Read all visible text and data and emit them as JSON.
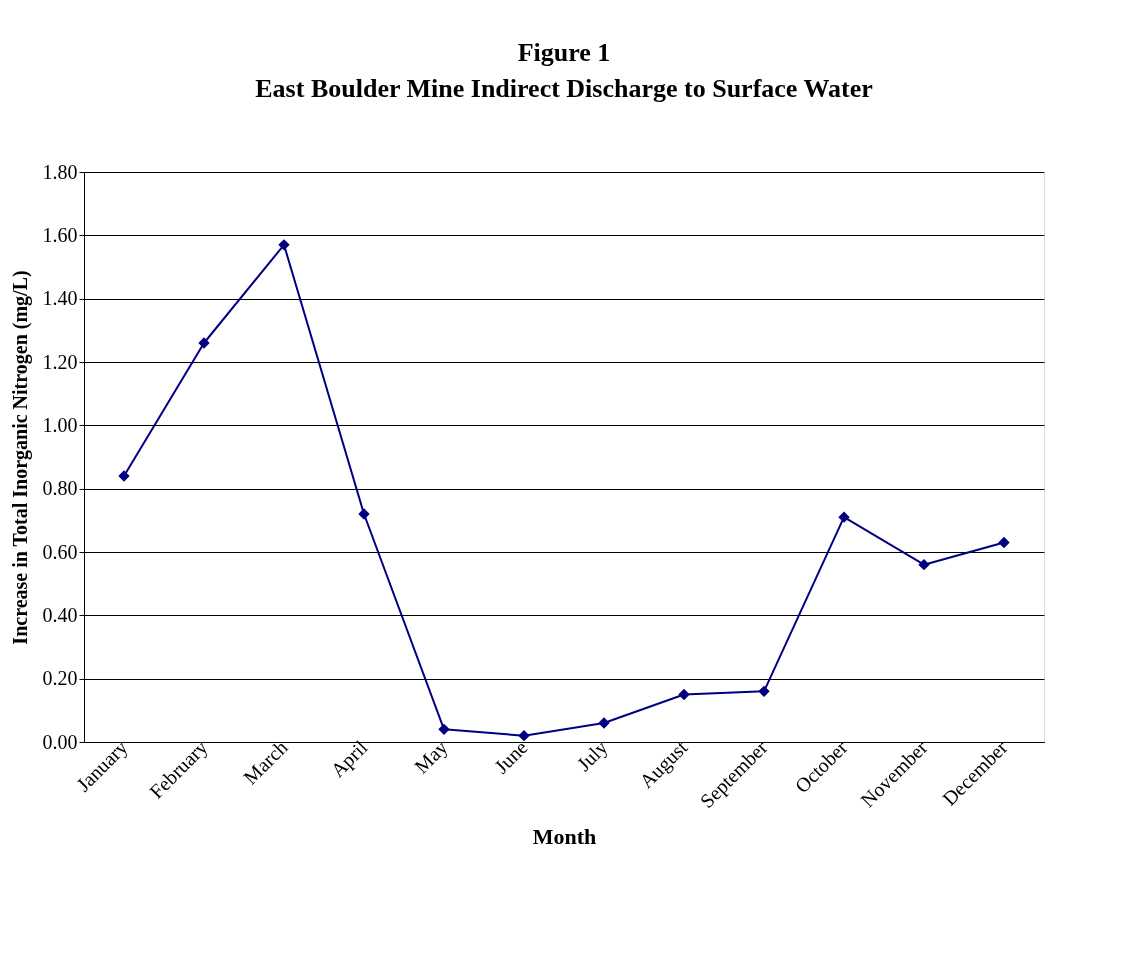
{
  "chart_data": {
    "type": "line",
    "title": "Figure 1",
    "subtitle": "East Boulder Mine Indirect Discharge to Surface Water",
    "xlabel": "Month",
    "ylabel": "Increase in Total Inorganic Nitrogen (mg/L)",
    "categories": [
      "January",
      "February",
      "March",
      "April",
      "May",
      "June",
      "July",
      "August",
      "September",
      "October",
      "November",
      "December"
    ],
    "series": [
      {
        "color": "#000080",
        "values": [
          0.84,
          1.26,
          1.57,
          0.72,
          0.04,
          0.02,
          0.06,
          0.15,
          0.16,
          0.71,
          0.56,
          0.63
        ]
      }
    ],
    "ylim": [
      0,
      1.8
    ],
    "yticks": [
      {
        "value": 0,
        "label": "0.00"
      },
      {
        "value": 0.2,
        "label": "0.20"
      },
      {
        "value": 0.4,
        "label": "0.40"
      },
      {
        "value": 0.6,
        "label": "0.60"
      },
      {
        "value": 0.8,
        "label": "0.80"
      },
      {
        "value": 1.0,
        "label": "1.00"
      },
      {
        "value": 1.2,
        "label": "1.20"
      },
      {
        "value": 1.4,
        "label": "1.40"
      },
      {
        "value": 1.6,
        "label": "1.60"
      },
      {
        "value": 1.8,
        "label": "1.80"
      }
    ],
    "grid": "y",
    "marker": "diamond",
    "line_style": "solid"
  }
}
